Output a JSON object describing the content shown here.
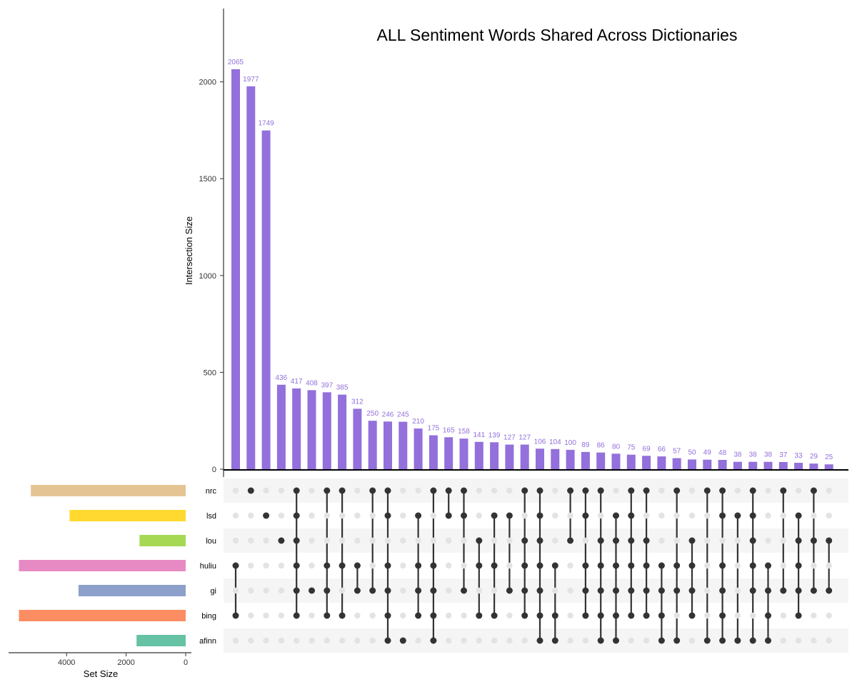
{
  "chart_data": {
    "type": "upset",
    "title": "ALL Sentiment Words Shared Across Dictionaries",
    "intersection_axis": {
      "label": "Intersection Size",
      "ylim": [
        0,
        2400
      ],
      "ticks": [
        "0",
        "500",
        "1000",
        "1500",
        "2000"
      ]
    },
    "set_size_axis": {
      "label": "Set Size",
      "xlim": [
        0,
        5650
      ],
      "ticks": [
        "4000",
        "2000",
        "0"
      ]
    },
    "sets": [
      {
        "name": "nrc",
        "size": 5200,
        "color": "#e5c494"
      },
      {
        "name": "lsd",
        "size": 3900,
        "color": "#ffd92f"
      },
      {
        "name": "lou",
        "size": 1550,
        "color": "#a6d854"
      },
      {
        "name": "huliu",
        "size": 5600,
        "color": "#e78ac3"
      },
      {
        "name": "gi",
        "size": 3600,
        "color": "#8da0cb"
      },
      {
        "name": "bing",
        "size": 5600,
        "color": "#fc8d62"
      },
      {
        "name": "afinn",
        "size": 1650,
        "color": "#66c2a5"
      }
    ],
    "bar_color": "#9370db",
    "intersections": [
      {
        "size": 2065,
        "label": "2065",
        "sets": [
          "huliu",
          "bing"
        ]
      },
      {
        "size": 1977,
        "label": "1977",
        "sets": [
          "nrc"
        ]
      },
      {
        "size": 1749,
        "label": "1749",
        "sets": [
          "lsd"
        ]
      },
      {
        "size": 436,
        "label": "436",
        "sets": [
          "lou"
        ]
      },
      {
        "size": 417,
        "label": "417",
        "sets": [
          "nrc",
          "lsd",
          "lou",
          "huliu",
          "gi",
          "bing"
        ]
      },
      {
        "size": 408,
        "label": "408",
        "sets": [
          "gi"
        ]
      },
      {
        "size": 397,
        "label": "397",
        "sets": [
          "nrc",
          "huliu",
          "gi",
          "bing"
        ]
      },
      {
        "size": 385,
        "label": "385",
        "sets": [
          "nrc",
          "huliu",
          "bing"
        ]
      },
      {
        "size": 312,
        "label": "312",
        "sets": [
          "huliu",
          "gi"
        ]
      },
      {
        "size": 250,
        "label": "250",
        "sets": [
          "nrc",
          "gi"
        ]
      },
      {
        "size": 246,
        "label": "246",
        "sets": [
          "nrc",
          "lsd",
          "huliu",
          "gi",
          "bing",
          "afinn"
        ]
      },
      {
        "size": 245,
        "label": "245",
        "sets": [
          "afinn"
        ]
      },
      {
        "size": 210,
        "label": "210",
        "sets": [
          "lsd",
          "huliu",
          "gi",
          "bing"
        ]
      },
      {
        "size": 175,
        "label": "175",
        "sets": [
          "nrc",
          "huliu",
          "gi",
          "bing",
          "afinn"
        ]
      },
      {
        "size": 165,
        "label": "165",
        "sets": [
          "nrc",
          "lsd"
        ]
      },
      {
        "size": 158,
        "label": "158",
        "sets": [
          "nrc",
          "lsd",
          "gi"
        ]
      },
      {
        "size": 141,
        "label": "141",
        "sets": [
          "lou",
          "huliu",
          "bing"
        ]
      },
      {
        "size": 139,
        "label": "139",
        "sets": [
          "lsd",
          "huliu",
          "bing"
        ]
      },
      {
        "size": 127,
        "label": "127",
        "sets": [
          "lsd",
          "gi"
        ]
      },
      {
        "size": 127,
        "label": "127",
        "sets": [
          "nrc",
          "lou",
          "huliu",
          "gi",
          "bing"
        ]
      },
      {
        "size": 106,
        "label": "106",
        "sets": [
          "nrc",
          "lsd",
          "lou",
          "huliu",
          "gi",
          "bing",
          "afinn"
        ]
      },
      {
        "size": 104,
        "label": "104",
        "sets": [
          "huliu",
          "bing",
          "afinn"
        ]
      },
      {
        "size": 100,
        "label": "100",
        "sets": [
          "nrc",
          "lou"
        ]
      },
      {
        "size": 89,
        "label": "89",
        "sets": [
          "nrc",
          "lsd",
          "huliu",
          "gi",
          "bing"
        ]
      },
      {
        "size": 86,
        "label": "86",
        "sets": [
          "nrc",
          "lou",
          "huliu",
          "gi",
          "bing",
          "afinn"
        ]
      },
      {
        "size": 80,
        "label": "80",
        "sets": [
          "lsd",
          "lou",
          "huliu",
          "gi",
          "bing",
          "afinn"
        ]
      },
      {
        "size": 75,
        "label": "75",
        "sets": [
          "nrc",
          "lsd",
          "lou",
          "huliu",
          "gi",
          "bing"
        ]
      },
      {
        "size": 69,
        "label": "69",
        "sets": [
          "nrc",
          "lou",
          "huliu",
          "gi",
          "bing"
        ]
      },
      {
        "size": 66,
        "label": "66",
        "sets": [
          "huliu",
          "gi",
          "bing",
          "afinn"
        ]
      },
      {
        "size": 57,
        "label": "57",
        "sets": [
          "nrc",
          "huliu",
          "gi",
          "afinn"
        ]
      },
      {
        "size": 50,
        "label": "50",
        "sets": [
          "lou",
          "huliu",
          "gi",
          "bing"
        ]
      },
      {
        "size": 49,
        "label": "49",
        "sets": [
          "nrc",
          "afinn"
        ]
      },
      {
        "size": 48,
        "label": "48",
        "sets": [
          "nrc",
          "lsd",
          "huliu",
          "gi",
          "bing",
          "afinn"
        ]
      },
      {
        "size": 38,
        "label": "38",
        "sets": [
          "lsd",
          "afinn"
        ]
      },
      {
        "size": 38,
        "label": "38",
        "sets": [
          "nrc",
          "lsd",
          "lou",
          "huliu",
          "gi",
          "afinn"
        ]
      },
      {
        "size": 38,
        "label": "38",
        "sets": [
          "huliu",
          "gi",
          "bing",
          "afinn"
        ]
      },
      {
        "size": 37,
        "label": "37",
        "sets": [
          "nrc",
          "gi"
        ]
      },
      {
        "size": 33,
        "label": "33",
        "sets": [
          "lsd",
          "lou",
          "huliu",
          "gi",
          "bing"
        ]
      },
      {
        "size": 29,
        "label": "29",
        "sets": [
          "nrc",
          "lou",
          "gi"
        ]
      },
      {
        "size": 25,
        "label": "25",
        "sets": [
          "lou",
          "gi"
        ]
      }
    ]
  }
}
